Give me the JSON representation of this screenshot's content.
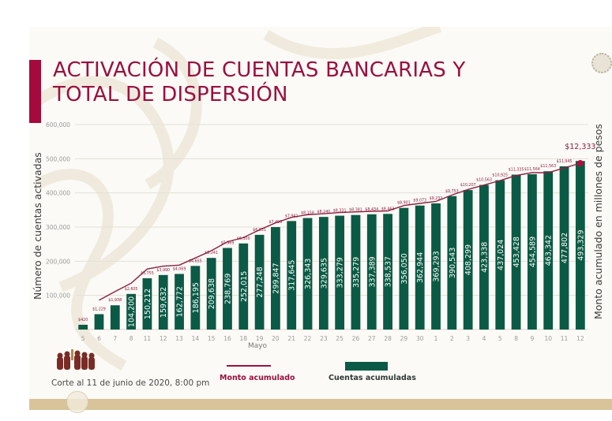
{
  "title": {
    "line1": "ACTIVACIÓN DE CUENTAS BANCARIAS Y",
    "line2": "TOTAL DE DISPERSIÓN"
  },
  "colors": {
    "title": "#9a1040",
    "accent_bar": "#a50a3d",
    "bars": "#0b5a45",
    "line": "#8a2040",
    "gold_band": "#d8c39a"
  },
  "axes": {
    "y_left_label": "Número de cuentas activadas",
    "y_right_label": "Monto acumulado en millones de pesos",
    "x_label": "Mayo",
    "y_ticks": [
      "100,000",
      "200,000",
      "300,000",
      "400,000",
      "500,000",
      "600,000"
    ]
  },
  "legend": {
    "line_label": "Monto acumulado",
    "bar_label": "Cuentas acumuladas"
  },
  "footnote": "Corte al 11 de junio de 2020, 8:00 pm",
  "chart_data": {
    "type": "bar",
    "title": "ACTIVACIÓN DE CUENTAS BANCARIAS Y TOTAL DE DISPERSIÓN",
    "xlabel": "Mayo",
    "ylabel": "Número de cuentas activadas",
    "y2label": "Monto acumulado en millones de pesos",
    "ylim": [
      0,
      600000
    ],
    "grid": true,
    "legend_position": "bottom",
    "categories": [
      "5",
      "6",
      "7",
      "8",
      "11",
      "12",
      "13",
      "14",
      "15",
      "16",
      "18",
      "19",
      "20",
      "21",
      "22",
      "23",
      "25",
      "26",
      "27",
      "28",
      "29",
      "30",
      "1",
      "2",
      "3",
      "4",
      "5",
      "8",
      "9",
      "10",
      "11",
      "12"
    ],
    "series": [
      {
        "name": "Cuentas acumuladas",
        "type": "bar",
        "values": [
          14000,
          45000,
          71000,
          104200,
          150212,
          159632,
          162772,
          186195,
          209638,
          238769,
          252015,
          277248,
          299847,
          317645,
          326343,
          329635,
          333279,
          335279,
          337389,
          338537,
          356050,
          362944,
          369293,
          390543,
          408299,
          423338,
          437024,
          453428,
          454589,
          463342,
          477802,
          493329
        ],
        "labels": [
          "",
          "",
          "",
          "104,200",
          "150,212",
          "159,632",
          "162,772",
          "186,195",
          "209,638",
          "238,769",
          "252,015",
          "277,248",
          "299,847",
          "317,645",
          "326,343",
          "329,635",
          "333,279",
          "335,279",
          "337,389",
          "338,537",
          "356,050",
          "362,944",
          "369,293",
          "390,543",
          "408,299",
          "423,338",
          "437,024",
          "453,428",
          "454,589",
          "463,342",
          "477,802",
          "493,329"
        ]
      },
      {
        "name": "Monto acumulado",
        "type": "line",
        "axis": "right",
        "values": [
          420,
          1229,
          1938,
          2605,
          3755,
          3990,
          4069,
          4655,
          5241,
          5969,
          6300,
          6931,
          7496,
          7941,
          8158,
          8240,
          8331,
          8381,
          8434,
          8463,
          8901,
          9073,
          9232,
          9753,
          10207,
          10563,
          10925,
          11335,
          11564,
          11563,
          11945,
          12333
        ],
        "labels": [
          "$420",
          "$1,229",
          "$1,938",
          "$2,605",
          "$3,755",
          "$3,990",
          "$4,069",
          "$4,655",
          "$5,241",
          "$5,969",
          "$6,300",
          "$6,931",
          "$7,496",
          "$7,941",
          "$8,158",
          "$8,240",
          "$8,331",
          "$8,381",
          "$8,434",
          "$8,463",
          "$8,901",
          "$9,073",
          "$9,232",
          "$9,753",
          "$10,207",
          "$10,563",
          "$10,925",
          "$11,335",
          "$11,564",
          "$11,563",
          "$11,945",
          "$12,333"
        ]
      }
    ]
  }
}
